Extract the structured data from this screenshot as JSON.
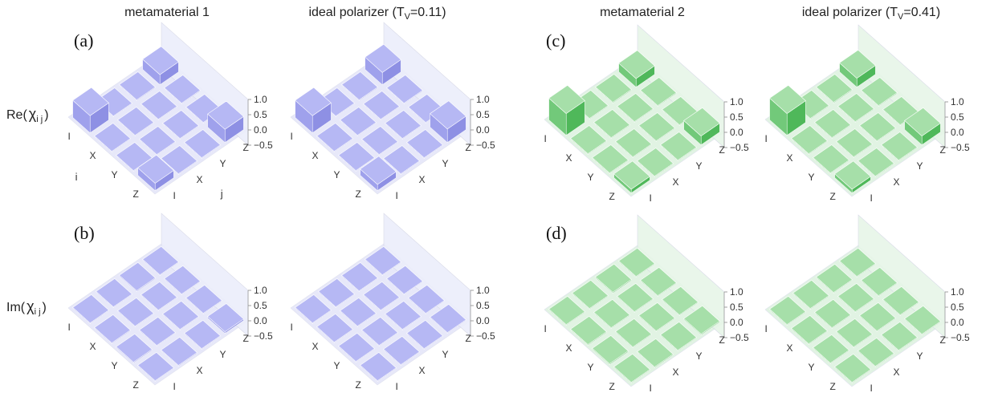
{
  "panel_letters": [
    "(a)",
    "(b)",
    "(c)",
    "(d)"
  ],
  "row_labels": {
    "re": {
      "prefix": "Re(",
      "chi": "χ",
      "sub": "i j",
      "suffix": ")"
    },
    "im": {
      "prefix": "Im(",
      "chi": "χ",
      "sub": "i j",
      "suffix": ")"
    }
  },
  "column_titles": [
    {
      "text": "metamaterial 1"
    },
    {
      "text": "ideal polarizer  (T",
      "sub": "V",
      "tail": "=0.11)"
    },
    {
      "text": "metamaterial 2"
    },
    {
      "text": "ideal polarizer  (T",
      "sub": "V",
      "tail": "=0.41)"
    }
  ],
  "colors": {
    "blue": {
      "top": "#b6b8f4",
      "left": "#8e90e4",
      "right": "#9fa1ec",
      "wall": "#eceefb",
      "floor": "#dfe1f7"
    },
    "green": {
      "top": "#a6dfa9",
      "left": "#4fb85a",
      "right": "#72c97a",
      "wall": "#e7f6e8",
      "floor": "#d8efda"
    }
  },
  "chart_data": [
    {
      "type": "bar3d",
      "id": "re-metamaterial-1",
      "row": "Re",
      "column": "metamaterial 1",
      "color": "blue",
      "i_labels": [
        "I",
        "X",
        "Y",
        "Z"
      ],
      "j_labels": [
        "I",
        "X",
        "Y",
        "Z"
      ],
      "xlabel": "i",
      "ylabel": "j",
      "zticks": [
        "1.0",
        "0.5",
        "0.0",
        "−0.5"
      ],
      "zlim": [
        -0.5,
        1.0
      ],
      "values": [
        [
          0.56,
          0.02,
          0.0,
          0.33
        ],
        [
          0.02,
          0.0,
          0.0,
          0.0
        ],
        [
          0.0,
          0.0,
          0.0,
          0.0
        ],
        [
          0.24,
          0.0,
          0.0,
          0.43
        ]
      ]
    },
    {
      "type": "bar3d",
      "id": "re-ideal-polarizer-011",
      "row": "Re",
      "column": "ideal polarizer (TV=0.11)",
      "color": "blue",
      "i_labels": [
        "I",
        "X",
        "Y",
        "Z"
      ],
      "j_labels": [
        "I",
        "X",
        "Y",
        "Z"
      ],
      "zticks": [
        "1.0",
        "0.5",
        "0.0",
        "−0.5"
      ],
      "zlim": [
        -0.5,
        1.0
      ],
      "values": [
        [
          0.56,
          0.0,
          0.0,
          0.4
        ],
        [
          0.0,
          0.0,
          0.0,
          0.0
        ],
        [
          0.0,
          0.0,
          0.0,
          0.0
        ],
        [
          0.2,
          0.0,
          0.0,
          0.44
        ]
      ]
    },
    {
      "type": "bar3d",
      "id": "re-metamaterial-2",
      "row": "Re",
      "column": "metamaterial 2",
      "color": "green",
      "i_labels": [
        "I",
        "X",
        "Y",
        "Z"
      ],
      "j_labels": [
        "I",
        "X",
        "Y",
        "Z"
      ],
      "zticks": [
        "1.0",
        "0.5",
        "0.0",
        "−0.5"
      ],
      "zlim": [
        -0.5,
        1.0
      ],
      "values": [
        [
          0.71,
          0.0,
          0.0,
          0.28
        ],
        [
          0.0,
          0.0,
          0.0,
          0.0
        ],
        [
          0.0,
          0.0,
          0.0,
          0.0
        ],
        [
          0.12,
          0.0,
          0.0,
          0.29
        ]
      ]
    },
    {
      "type": "bar3d",
      "id": "re-ideal-polarizer-041",
      "row": "Re",
      "column": "ideal polarizer (TV=0.41)",
      "color": "green",
      "i_labels": [
        "I",
        "X",
        "Y",
        "Z"
      ],
      "j_labels": [
        "I",
        "X",
        "Y",
        "Z"
      ],
      "zticks": [
        "1.0",
        "0.5",
        "0.0",
        "−0.5"
      ],
      "zlim": [
        -0.5,
        1.0
      ],
      "values": [
        [
          0.71,
          0.0,
          0.0,
          0.29
        ],
        [
          0.0,
          0.0,
          0.0,
          0.0
        ],
        [
          0.0,
          0.0,
          0.0,
          0.0
        ],
        [
          0.12,
          0.0,
          0.0,
          0.29
        ]
      ]
    },
    {
      "type": "bar3d",
      "id": "im-metamaterial-1",
      "row": "Im",
      "column": "metamaterial 1",
      "color": "blue",
      "i_labels": [
        "I",
        "X",
        "Y",
        "Z"
      ],
      "j_labels": [
        "I",
        "X",
        "Y",
        "Z"
      ],
      "zticks": [
        "1.0",
        "0.5",
        "0.0",
        "−0.5"
      ],
      "zlim": [
        -0.5,
        1.0
      ],
      "values": [
        [
          0.0,
          0.02,
          0.03,
          0.0
        ],
        [
          -0.02,
          0.0,
          0.0,
          0.02
        ],
        [
          -0.03,
          0.0,
          0.0,
          0.0
        ],
        [
          0.0,
          -0.02,
          0.0,
          0.05
        ]
      ]
    },
    {
      "type": "bar3d",
      "id": "im-ideal-polarizer-011",
      "row": "Im",
      "column": "ideal polarizer (TV=0.11)",
      "color": "blue",
      "i_labels": [
        "I",
        "X",
        "Y",
        "Z"
      ],
      "j_labels": [
        "I",
        "X",
        "Y",
        "Z"
      ],
      "zticks": [
        "1.0",
        "0.5",
        "0.0",
        "−0.5"
      ],
      "zlim": [
        -0.5,
        1.0
      ],
      "values": [
        [
          0.0,
          0.0,
          0.0,
          0.0
        ],
        [
          0.0,
          0.0,
          0.0,
          0.0
        ],
        [
          0.0,
          0.0,
          0.0,
          0.0
        ],
        [
          0.0,
          0.0,
          0.0,
          0.0
        ]
      ]
    },
    {
      "type": "bar3d",
      "id": "im-metamaterial-2",
      "row": "Im",
      "column": "metamaterial 2",
      "color": "green",
      "i_labels": [
        "I",
        "X",
        "Y",
        "Z"
      ],
      "j_labels": [
        "I",
        "X",
        "Y",
        "Z"
      ],
      "zticks": [
        "1.0",
        "0.5",
        "0.0",
        "−0.5"
      ],
      "zlim": [
        -0.5,
        1.0
      ],
      "values": [
        [
          0.0,
          0.02,
          0.03,
          0.0
        ],
        [
          -0.02,
          0.0,
          0.0,
          0.02
        ],
        [
          -0.03,
          0.0,
          0.0,
          0.0
        ],
        [
          0.0,
          -0.02,
          0.0,
          0.03
        ]
      ]
    },
    {
      "type": "bar3d",
      "id": "im-ideal-polarizer-041",
      "row": "Im",
      "column": "ideal polarizer (TV=0.41)",
      "color": "green",
      "i_labels": [
        "I",
        "X",
        "Y",
        "Z"
      ],
      "j_labels": [
        "I",
        "X",
        "Y",
        "Z"
      ],
      "zticks": [
        "1.0",
        "0.5",
        "0.0",
        "−0.5"
      ],
      "zlim": [
        -0.5,
        1.0
      ],
      "values": [
        [
          0.0,
          0.0,
          0.0,
          0.0
        ],
        [
          0.0,
          0.0,
          0.0,
          0.0
        ],
        [
          0.0,
          0.0,
          0.0,
          0.0
        ],
        [
          0.0,
          0.0,
          0.0,
          0.0
        ]
      ]
    }
  ]
}
